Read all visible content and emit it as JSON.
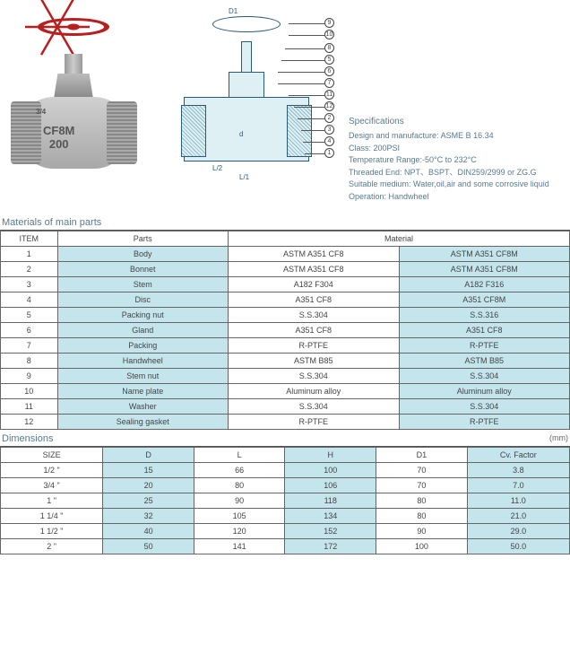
{
  "product": {
    "body_marking_line1": "CF8M",
    "body_marking_line2": "200",
    "size_mark": "3/4"
  },
  "diagram": {
    "dims": {
      "d1": "D1",
      "d": "d",
      "l_half": "L/2",
      "l1": "L/1"
    },
    "callouts": [
      "1",
      "2",
      "3",
      "4",
      "5",
      "6",
      "7",
      "8",
      "9",
      "10",
      "11",
      "12"
    ]
  },
  "specs": {
    "title": "Specifications",
    "lines": [
      "Design and manufacture: ASME B 16.34",
      "Class: 200PSI",
      "Temperature Range:-50°C to 232°C",
      "Threaded End: NPT、BSPT、DIN259/2999 or ZG.G",
      "Suitable medium: Water,oil,air and some corrosive liquid",
      "Operation: Handwheel"
    ]
  },
  "materials": {
    "title": "Materials of main parts",
    "headers": [
      "ITEM",
      "Parts",
      "Material"
    ],
    "rows": [
      {
        "item": "1",
        "part": "Body",
        "m1": "ASTM A351 CF8",
        "m2": "ASTM A351 CF8M"
      },
      {
        "item": "2",
        "part": "Bonnet",
        "m1": "ASTM A351 CF8",
        "m2": "ASTM A351 CF8M"
      },
      {
        "item": "3",
        "part": "Stem",
        "m1": "A182 F304",
        "m2": "A182 F316"
      },
      {
        "item": "4",
        "part": "Disc",
        "m1": "A351 CF8",
        "m2": "A351 CF8M"
      },
      {
        "item": "5",
        "part": "Packing nut",
        "m1": "S.S.304",
        "m2": "S.S.316"
      },
      {
        "item": "6",
        "part": "Gland",
        "m1": "A351 CF8",
        "m2": "A351 CF8"
      },
      {
        "item": "7",
        "part": "Packing",
        "m1": "R-PTFE",
        "m2": "R-PTFE"
      },
      {
        "item": "8",
        "part": "Handwheel",
        "m1": "ASTM B85",
        "m2": "ASTM B85"
      },
      {
        "item": "9",
        "part": "Stem nut",
        "m1": "S.S.304",
        "m2": "S.S.304"
      },
      {
        "item": "10",
        "part": "Name plate",
        "m1": "Aluminum alloy",
        "m2": "Aluminum alloy"
      },
      {
        "item": "11",
        "part": "Washer",
        "m1": "S.S.304",
        "m2": "S.S.304"
      },
      {
        "item": "12",
        "part": "Sealing gasket",
        "m1": "R-PTFE",
        "m2": "R-PTFE"
      }
    ]
  },
  "dimensions": {
    "title": "Dimensions",
    "unit": "(mm)",
    "headers": [
      "SIZE",
      "D",
      "L",
      "H",
      "D1",
      "Cv. Factor"
    ],
    "rows": [
      {
        "size": "1/2 \"",
        "d": "15",
        "l": "66",
        "h": "100",
        "d1": "70",
        "cv": "3.8"
      },
      {
        "size": "3/4 \"",
        "d": "20",
        "l": "80",
        "h": "106",
        "d1": "70",
        "cv": "7.0"
      },
      {
        "size": "1 \"",
        "d": "25",
        "l": "90",
        "h": "118",
        "d1": "80",
        "cv": "11.0"
      },
      {
        "size": "1 1/4 \"",
        "d": "32",
        "l": "105",
        "h": "134",
        "d1": "80",
        "cv": "21.0"
      },
      {
        "size": "1 1/2 \"",
        "d": "40",
        "l": "120",
        "h": "152",
        "d1": "90",
        "cv": "29.0"
      },
      {
        "size": "2 \"",
        "d": "50",
        "l": "141",
        "h": "172",
        "d1": "100",
        "cv": "50.0"
      }
    ]
  },
  "style": {
    "highlight_color": "#c5e5ed",
    "border_color": "#666666",
    "text_color": "#444444",
    "spec_color": "#5a7a8c",
    "handwheel_color": "#b82020",
    "diagram_stroke": "#2a5a7a",
    "materials_col_widths_pct": [
      10,
      30,
      30,
      30
    ],
    "dimensions_col_widths_pct": [
      18,
      16,
      16,
      16,
      16,
      18
    ]
  }
}
